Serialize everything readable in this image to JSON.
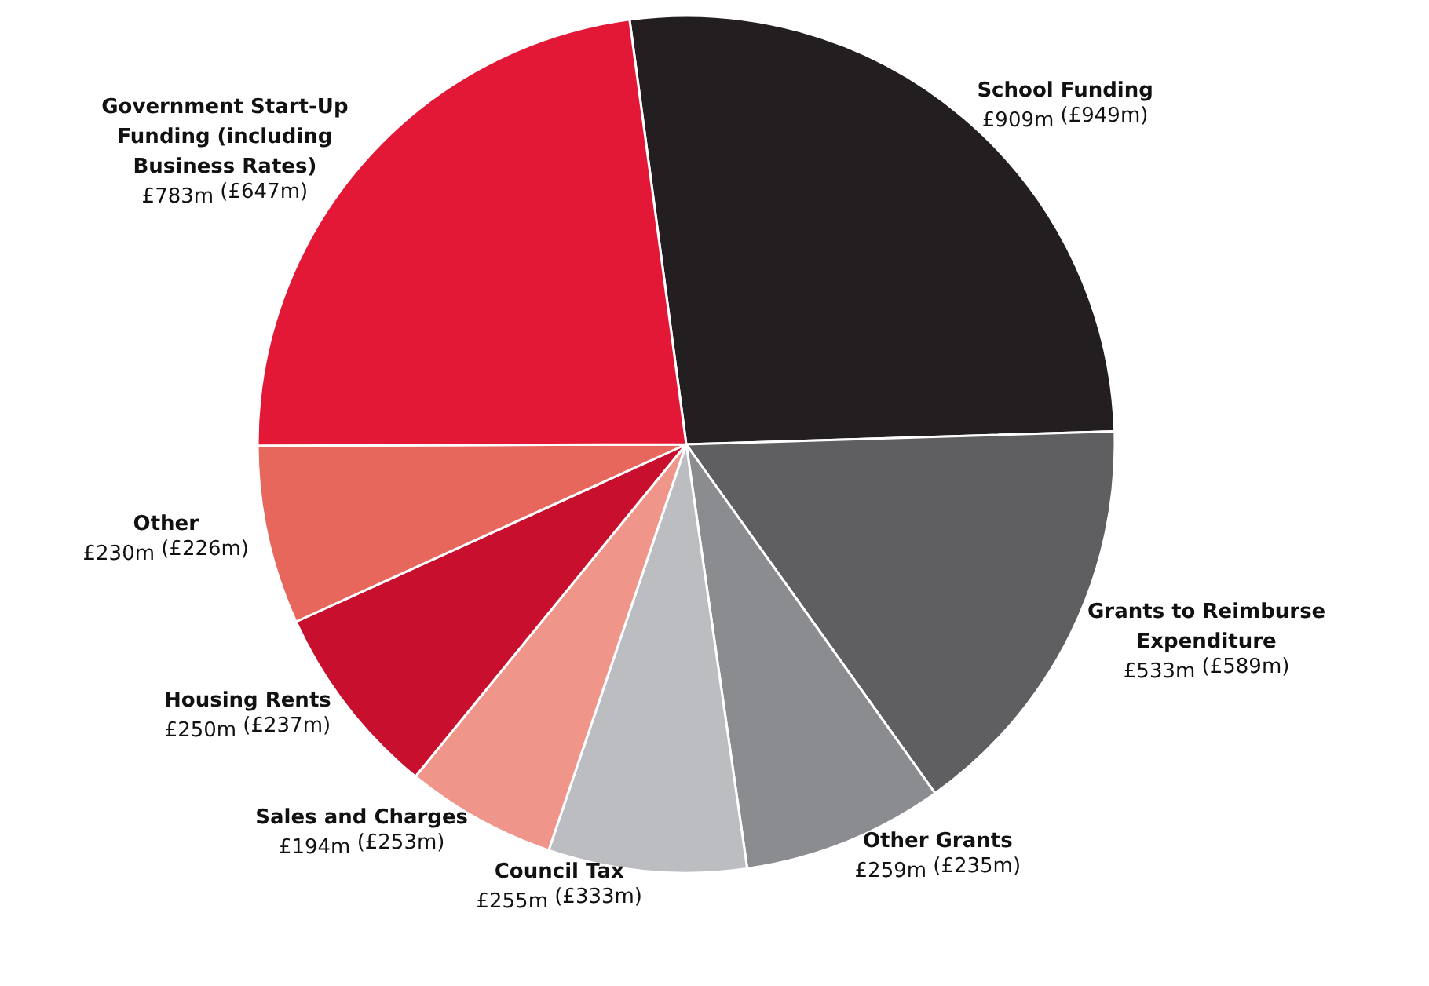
{
  "chart_data": {
    "type": "pie",
    "categories": [
      "School Funding",
      "Grants to Reimburse Expenditure",
      "Other Grants",
      "Council Tax",
      "Sales and Charges",
      "Housing Rents",
      "Other",
      "Government Start-Up Funding (including Business Rates)"
    ],
    "values": [
      909,
      533,
      259,
      255,
      194,
      250,
      230,
      783
    ],
    "value_labels": [
      "£909m",
      "£533m",
      "£259m",
      "£255m",
      "£194m",
      "£250m",
      "£230m",
      "£783m"
    ],
    "annotations": [
      "(£949m)",
      "(£589m)",
      "(£235m)",
      "(£333m)",
      "(£253m)",
      "(£237m)",
      "(£226m)",
      "(£647m)"
    ],
    "colors": [
      "#231f20",
      "#5f5f61",
      "#8b8c8f",
      "#bcbdc0",
      "#f0958a",
      "#c8102e",
      "#e8675c",
      "#e31837"
    ]
  }
}
